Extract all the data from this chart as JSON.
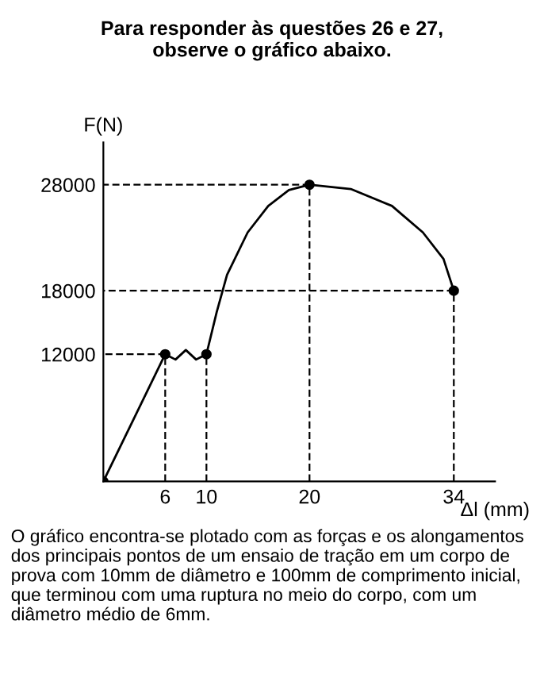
{
  "chart_data": {
    "type": "line",
    "title": "Para responder às questões 26 e 27,\nobserve o gráfico abaixo.",
    "ylabel": "F(N)",
    "xlabel": "Δl (mm)",
    "annotations": [
      "O gráfico encontra-se plotado com as forças e os alongamentos dos principais pontos de um ensaio de tração em um corpo de prova com 10mm de diâmetro e 100mm de comprimento inicial, que terminou com uma ruptura no meio do corpo, com um diâmetro médio de 6mm."
    ],
    "series": [
      {
        "color": "#000000",
        "x": [
          0,
          6,
          7,
          8,
          9,
          10,
          11,
          12,
          14,
          16,
          18,
          20,
          24,
          28,
          31,
          33,
          34
        ],
        "values": [
          0,
          12000,
          11500,
          12400,
          11500,
          12000,
          16000,
          19500,
          23500,
          26000,
          27500,
          28000,
          27600,
          26000,
          23500,
          21000,
          18000
        ]
      },
      {
        "line_style": "dashed",
        "color": "#000000",
        "x": [
          6,
          6,
          0
        ],
        "values": [
          0,
          12000,
          12000
        ]
      },
      {
        "line_style": "dashed",
        "color": "#000000",
        "x": [
          10,
          10
        ],
        "values": [
          0,
          12000
        ]
      },
      {
        "line_style": "dashed",
        "color": "#000000",
        "x": [
          20,
          20,
          0
        ],
        "values": [
          0,
          28000,
          28000
        ]
      },
      {
        "line_style": "dashed",
        "color": "#000000",
        "x": [
          34,
          34,
          0
        ],
        "values": [
          0,
          18000,
          18000
        ]
      },
      {
        "type": "scatter",
        "color": "#000000",
        "marker": "circle",
        "x": [
          0,
          6,
          10,
          20,
          34
        ],
        "values": [
          0,
          12000,
          12000,
          28000,
          18000
        ]
      }
    ],
    "xlim": [
      0,
      38
    ],
    "xticks": [
      6,
      10,
      20,
      34
    ],
    "ylim": [
      0,
      32000
    ],
    "yticks": [
      12000,
      18000,
      28000
    ],
    "grid": false,
    "legend": false
  }
}
